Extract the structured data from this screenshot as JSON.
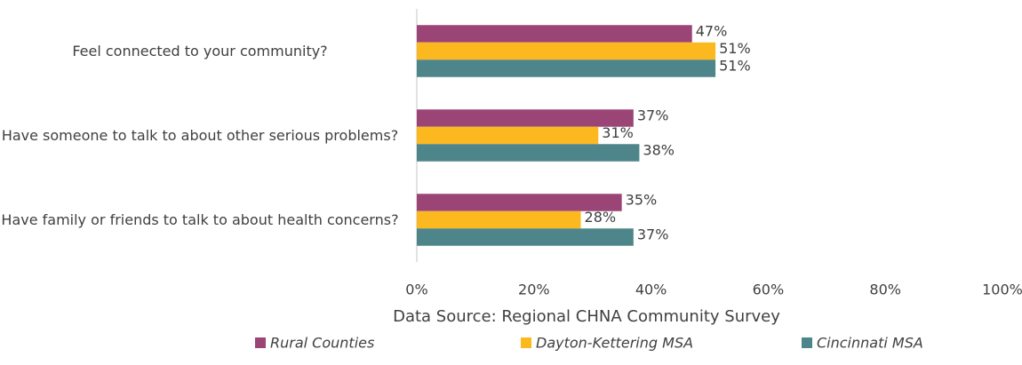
{
  "chart_data": {
    "type": "hbar",
    "categories": [
      "Feel connected to your community?",
      "Have someone to talk to about other serious problems?",
      "Have family or friends to talk to about health concerns?"
    ],
    "series": [
      {
        "name": "Rural Counties",
        "color": "#9b4577",
        "values": [
          47,
          37,
          35
        ],
        "value_labels": [
          "47%",
          "37%",
          "35%"
        ]
      },
      {
        "name": "Dayton-Kettering MSA",
        "color": "#fbb91f",
        "values": [
          51,
          31,
          28
        ],
        "value_labels": [
          "51%",
          "31%",
          "28%"
        ]
      },
      {
        "name": "Cincinnati MSA",
        "color": "#4e858a",
        "values": [
          51,
          38,
          37
        ],
        "value_labels": [
          "51%",
          "38%",
          "37%"
        ]
      }
    ],
    "xlim": [
      0,
      100
    ],
    "xticks": [
      {
        "value": 0,
        "label": "0%"
      },
      {
        "value": 20,
        "label": "20%"
      },
      {
        "value": 40,
        "label": "40%"
      },
      {
        "value": 60,
        "label": "60%"
      },
      {
        "value": 80,
        "label": "80%"
      },
      {
        "value": 100,
        "label": "100%"
      }
    ],
    "x_label": "Data Source: Regional CHNA Community Survey",
    "legend": "bottom"
  }
}
